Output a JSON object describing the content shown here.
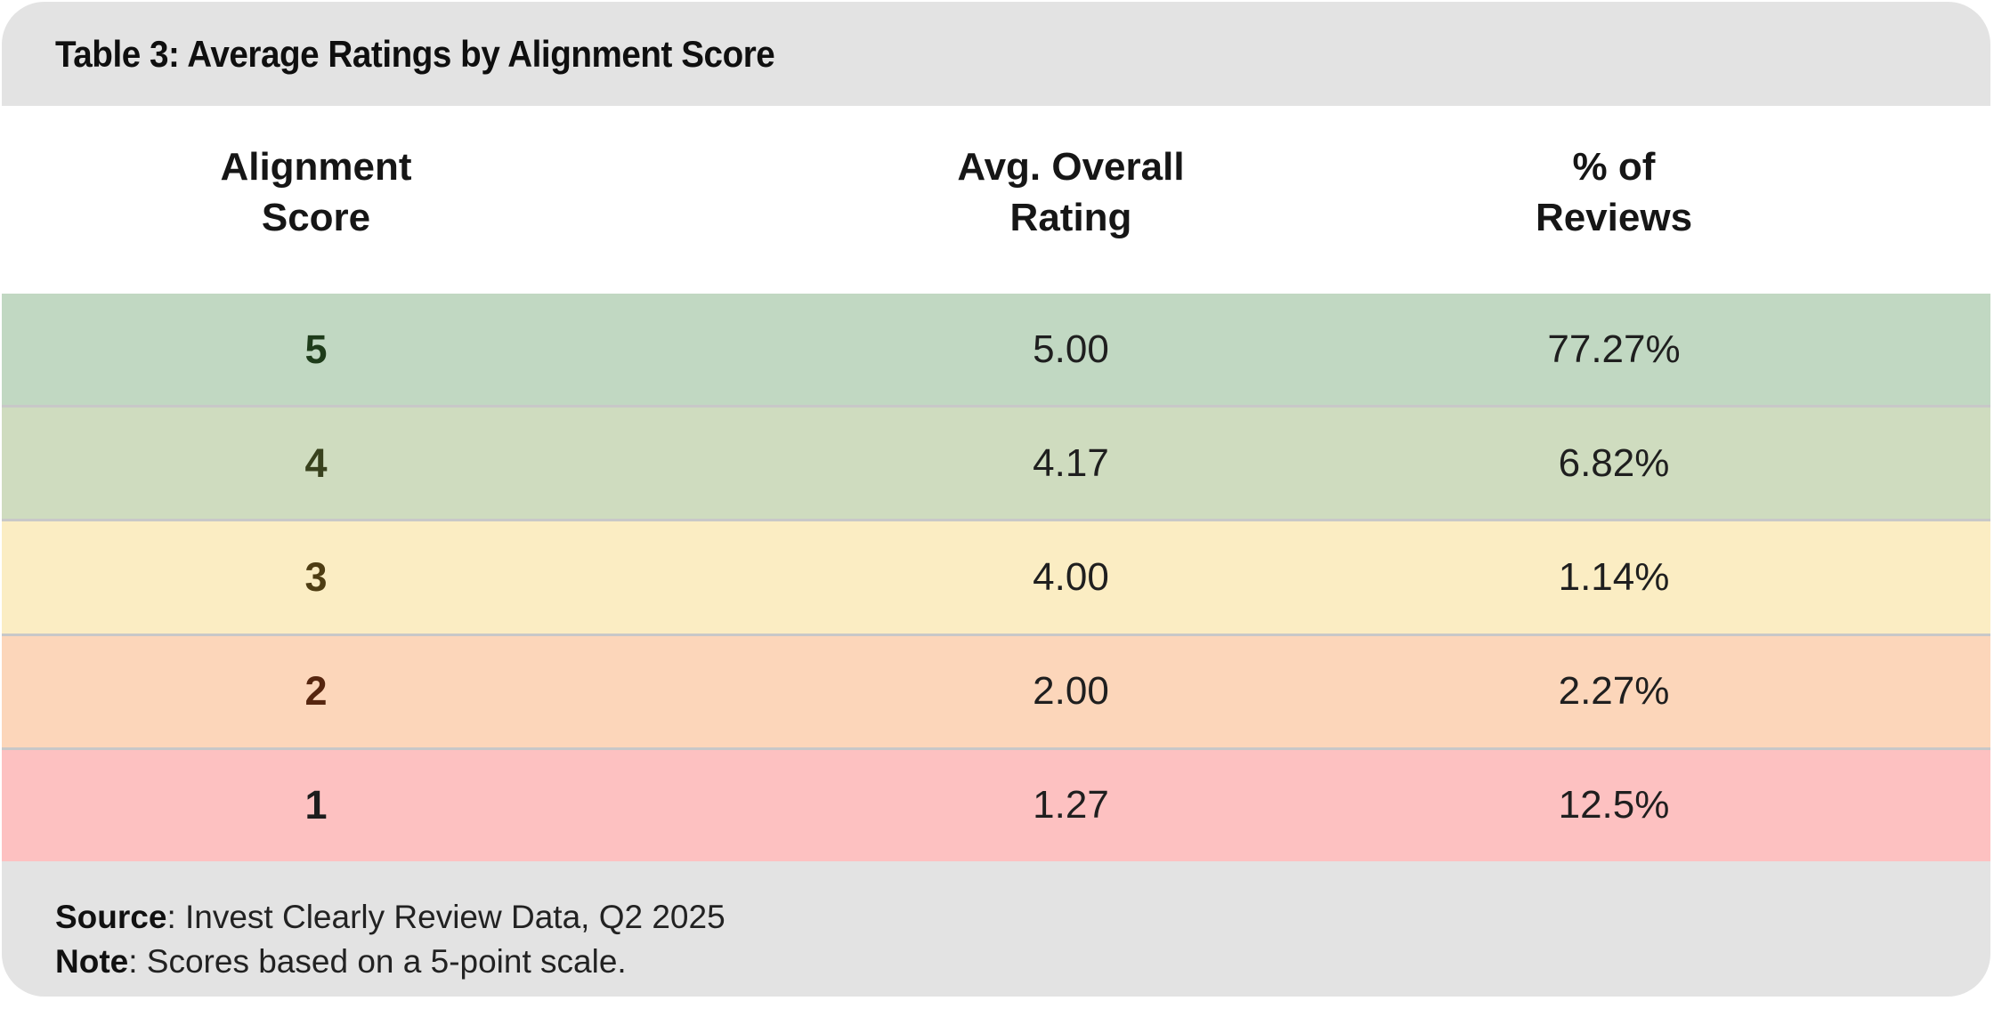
{
  "title": "Table 3: Average Ratings by Alignment Score",
  "header": {
    "col1": {
      "line1": "Alignment",
      "line2": "Score"
    },
    "col2": {
      "line1": "Avg. Overall",
      "line2": "Rating"
    },
    "col3": {
      "line1": "% of",
      "line2": "Reviews"
    }
  },
  "rows": [
    {
      "score": "5",
      "rating": "5.00",
      "pct": "77.27%",
      "bg": "#c1d8c2",
      "score_color": "#1e3c1a"
    },
    {
      "score": "4",
      "rating": "4.17",
      "pct": "6.82%",
      "bg": "#cfdcbf",
      "score_color": "#38411d"
    },
    {
      "score": "3",
      "rating": "4.00",
      "pct": "1.14%",
      "bg": "#fbedc3",
      "score_color": "#4e3d13"
    },
    {
      "score": "2",
      "rating": "2.00",
      "pct": "2.27%",
      "bg": "#fcd6ba",
      "score_color": "#56260f"
    },
    {
      "score": "1",
      "rating": "1.27",
      "pct": "12.5%",
      "bg": "#fdc1c1",
      "score_color": "#1d1d1d"
    }
  ],
  "footnotes": {
    "source_label": "Source",
    "source_text": ": Invest Clearly Review Data, Q2 2025",
    "note_label": "Note",
    "note_text": ": Scores based on a 5-point scale."
  },
  "colors": {
    "bar_bg": "#e3e3e3",
    "separator": "#c8c8c8",
    "header_text": "#161616",
    "value_text": "#1f1f1f"
  },
  "chart_data": {
    "type": "table",
    "title": "Table 3: Average Ratings by Alignment Score",
    "columns": [
      "Alignment Score",
      "Avg. Overall Rating",
      "% of Reviews"
    ],
    "rows": [
      {
        "alignment_score": 5,
        "avg_overall_rating": 5.0,
        "pct_of_reviews": 77.27
      },
      {
        "alignment_score": 4,
        "avg_overall_rating": 4.17,
        "pct_of_reviews": 6.82
      },
      {
        "alignment_score": 3,
        "avg_overall_rating": 4.0,
        "pct_of_reviews": 1.14
      },
      {
        "alignment_score": 2,
        "avg_overall_rating": 2.0,
        "pct_of_reviews": 2.27
      },
      {
        "alignment_score": 1,
        "avg_overall_rating": 1.27,
        "pct_of_reviews": 12.5
      }
    ],
    "row_colors": [
      "#c1d8c2",
      "#cfdcbf",
      "#fbedc3",
      "#fcd6ba",
      "#fdc1c1"
    ],
    "source": "Invest Clearly Review Data, Q2 2025",
    "note": "Scores based on a 5-point scale."
  }
}
